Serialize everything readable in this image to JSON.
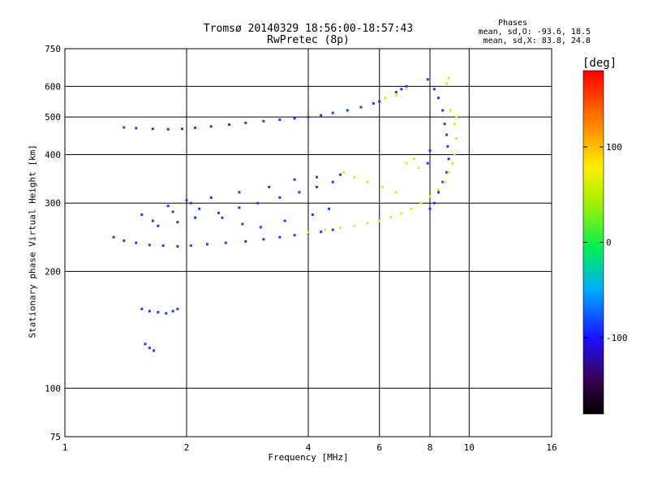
{
  "chart_data": {
    "type": "scatter",
    "title": "Tromsø 20140329 18:56:00-18:57:43",
    "subtitle": "RwPretec (8p)",
    "xlabel": "Frequency [MHz]",
    "ylabel": "Stationary phase Virtual Height [km]",
    "x_scale": "log",
    "y_scale": "log",
    "xlim": [
      1,
      16
    ],
    "ylim": [
      75,
      750
    ],
    "x_ticks": [
      1,
      2,
      4,
      6,
      8,
      10,
      16
    ],
    "y_ticks": [
      75,
      100,
      200,
      300,
      400,
      500,
      600,
      750
    ],
    "grid": true,
    "phase_stats": {
      "heading": "Phases",
      "line_o": "mean, sd,O: -93.6, 18.5",
      "line_x": "mean, sd,X:  83.8, 24.8"
    },
    "colorbar": {
      "label": "[deg]",
      "range": [
        -180,
        180
      ],
      "ticks": [
        100,
        0,
        -100
      ],
      "colormap": "rainbow"
    },
    "colors": {
      "o_mode": "#1e3cff",
      "x_mode": "#d8ef2a",
      "grid": "#000000"
    },
    "series": [
      {
        "points": [
          [
            1.32,
            245
          ],
          [
            1.4,
            240
          ],
          [
            1.5,
            237
          ],
          [
            1.62,
            234
          ],
          [
            1.75,
            233
          ],
          [
            1.9,
            232
          ],
          [
            2.05,
            233
          ],
          [
            2.25,
            235
          ],
          [
            2.5,
            237
          ],
          [
            2.8,
            239
          ],
          [
            3.1,
            242
          ],
          [
            3.4,
            245
          ],
          [
            3.7,
            248
          ],
          [
            4.0,
            251
          ],
          [
            4.3,
            253
          ],
          [
            4.6,
            256
          ],
          [
            1.7,
            262
          ],
          [
            1.9,
            268
          ],
          [
            2.1,
            275
          ],
          [
            2.4,
            283
          ],
          [
            2.7,
            292
          ],
          [
            3.0,
            300
          ],
          [
            3.4,
            310
          ],
          [
            3.8,
            320
          ],
          [
            4.2,
            330
          ],
          [
            4.6,
            340
          ],
          [
            1.65,
            270
          ],
          [
            1.85,
            285
          ],
          [
            2.05,
            300
          ],
          [
            2.3,
            310
          ],
          [
            2.7,
            320
          ],
          [
            3.2,
            330
          ],
          [
            3.7,
            345
          ],
          [
            4.2,
            350
          ],
          [
            4.8,
            355
          ],
          [
            1.55,
            280
          ],
          [
            1.8,
            295
          ],
          [
            2.0,
            305
          ],
          [
            2.15,
            290
          ],
          [
            2.45,
            275
          ],
          [
            2.75,
            265
          ],
          [
            3.05,
            260
          ],
          [
            3.5,
            270
          ],
          [
            4.1,
            280
          ],
          [
            4.5,
            290
          ],
          [
            1.4,
            470
          ],
          [
            1.5,
            468
          ],
          [
            1.65,
            466
          ],
          [
            1.8,
            465
          ],
          [
            1.95,
            466
          ],
          [
            2.1,
            469
          ],
          [
            2.3,
            473
          ],
          [
            2.55,
            478
          ],
          [
            2.8,
            483
          ],
          [
            3.1,
            488
          ],
          [
            3.4,
            492
          ],
          [
            3.7,
            496
          ],
          [
            4.0,
            500
          ],
          [
            4.3,
            505
          ],
          [
            4.6,
            512
          ],
          [
            5.0,
            520
          ],
          [
            5.4,
            530
          ],
          [
            5.8,
            542
          ],
          [
            6.0,
            548
          ],
          [
            1.55,
            160
          ],
          [
            1.62,
            158
          ],
          [
            1.7,
            157
          ],
          [
            1.78,
            156
          ],
          [
            1.85,
            158
          ],
          [
            1.9,
            160
          ],
          [
            1.58,
            130
          ],
          [
            1.62,
            127
          ],
          [
            1.66,
            125
          ],
          [
            6.6,
            580
          ],
          [
            6.8,
            590
          ],
          [
            7.0,
            600
          ],
          [
            7.9,
            625
          ],
          [
            8.2,
            590
          ],
          [
            8.4,
            560
          ],
          [
            8.6,
            520
          ],
          [
            8.7,
            480
          ],
          [
            8.8,
            450
          ],
          [
            8.85,
            420
          ],
          [
            8.9,
            390
          ],
          [
            8.8,
            360
          ],
          [
            8.6,
            340
          ],
          [
            8.4,
            320
          ],
          [
            8.2,
            300
          ],
          [
            8.0,
            290
          ],
          [
            7.9,
            380
          ],
          [
            8.0,
            410
          ]
        ]
      },
      {
        "points": [
          [
            4.0,
            252
          ],
          [
            4.4,
            256
          ],
          [
            4.8,
            259
          ],
          [
            5.2,
            262
          ],
          [
            5.6,
            266
          ],
          [
            6.0,
            270
          ],
          [
            6.4,
            276
          ],
          [
            6.8,
            282
          ],
          [
            7.2,
            290
          ],
          [
            7.6,
            300
          ],
          [
            8.0,
            312
          ],
          [
            8.4,
            325
          ],
          [
            8.7,
            340
          ],
          [
            8.9,
            360
          ],
          [
            9.1,
            380
          ],
          [
            9.2,
            400
          ],
          [
            9.3,
            440
          ],
          [
            9.2,
            480
          ],
          [
            9.0,
            520
          ],
          [
            6.2,
            560
          ],
          [
            6.6,
            570
          ],
          [
            7.0,
            590
          ],
          [
            8.9,
            630
          ],
          [
            8.8,
            610
          ],
          [
            9.3,
            500
          ],
          [
            4.9,
            360
          ],
          [
            5.2,
            350
          ],
          [
            5.6,
            340
          ],
          [
            6.1,
            330
          ],
          [
            6.6,
            320
          ],
          [
            7.0,
            380
          ],
          [
            7.3,
            390
          ],
          [
            7.5,
            370
          ]
        ]
      }
    ]
  }
}
